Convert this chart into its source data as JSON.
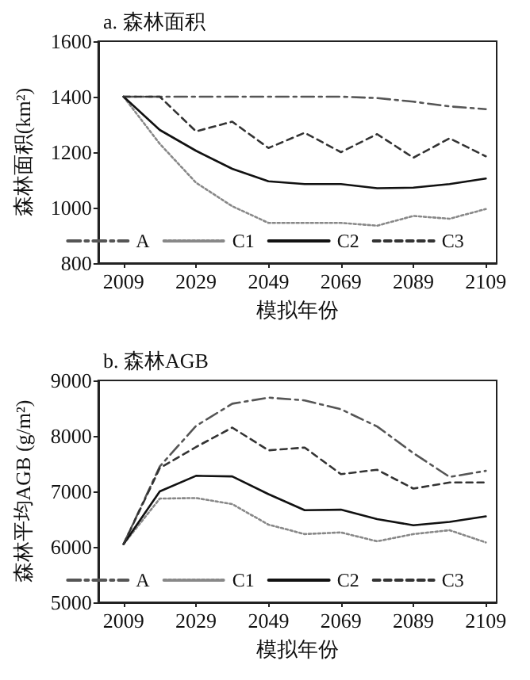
{
  "chart_data": [
    {
      "type": "line",
      "title": "a. 森林面积",
      "xlabel": "模拟年份",
      "ylabel": "森林面积(km²)",
      "x": [
        2009,
        2019,
        2029,
        2039,
        2049,
        2059,
        2069,
        2079,
        2089,
        2099,
        2109
      ],
      "xlim": [
        2002,
        2112
      ],
      "xticks": [
        2009,
        2029,
        2049,
        2069,
        2089,
        2109
      ],
      "ylim": [
        800,
        1600
      ],
      "yticks": [
        800,
        1000,
        1200,
        1400,
        1600
      ],
      "legend": "bottom",
      "grid": false,
      "marker": "none",
      "series": [
        {
          "name": "A",
          "color": "#555555",
          "line_style": "dashdot",
          "values": [
            1400,
            1400,
            1400,
            1400,
            1400,
            1400,
            1400,
            1395,
            1382,
            1365,
            1355
          ]
        },
        {
          "name": "C1",
          "color": "#888888",
          "line_style": "dotted",
          "values": [
            1400,
            1230,
            1090,
            1005,
            945,
            945,
            945,
            935,
            970,
            960,
            995
          ]
        },
        {
          "name": "C2",
          "color": "#111111",
          "line_style": "solid",
          "values": [
            1400,
            1280,
            1205,
            1140,
            1095,
            1085,
            1085,
            1070,
            1072,
            1085,
            1105
          ]
        },
        {
          "name": "C3",
          "color": "#333333",
          "line_style": "dashed",
          "values": [
            1400,
            1400,
            1275,
            1310,
            1215,
            1270,
            1200,
            1265,
            1180,
            1250,
            1185
          ]
        }
      ]
    },
    {
      "type": "line",
      "title": "b. 森林AGB",
      "xlabel": "模拟年份",
      "ylabel": "森林平均AGB (g/m²)",
      "x": [
        2009,
        2019,
        2029,
        2039,
        2049,
        2059,
        2069,
        2079,
        2089,
        2099,
        2109
      ],
      "xlim": [
        2002,
        2112
      ],
      "xticks": [
        2009,
        2029,
        2049,
        2069,
        2089,
        2109
      ],
      "ylim": [
        5000,
        9000
      ],
      "yticks": [
        5000,
        6000,
        7000,
        8000,
        9000
      ],
      "legend": "bottom",
      "grid": false,
      "marker": "none",
      "series": [
        {
          "name": "A",
          "color": "#555555",
          "line_style": "dashdot",
          "values": [
            6050,
            7450,
            8180,
            8580,
            8690,
            8640,
            8480,
            8170,
            7690,
            7260,
            7370
          ]
        },
        {
          "name": "C1",
          "color": "#888888",
          "line_style": "dotted",
          "values": [
            6050,
            6870,
            6880,
            6770,
            6400,
            6230,
            6260,
            6100,
            6230,
            6300,
            6080
          ]
        },
        {
          "name": "C2",
          "color": "#111111",
          "line_style": "solid",
          "values": [
            6050,
            7000,
            7280,
            7270,
            6950,
            6660,
            6670,
            6500,
            6390,
            6450,
            6550
          ]
        },
        {
          "name": "C3",
          "color": "#333333",
          "line_style": "dashed",
          "values": [
            6050,
            7420,
            7800,
            8150,
            7740,
            7790,
            7310,
            7390,
            7050,
            7160,
            7160
          ]
        }
      ]
    }
  ]
}
